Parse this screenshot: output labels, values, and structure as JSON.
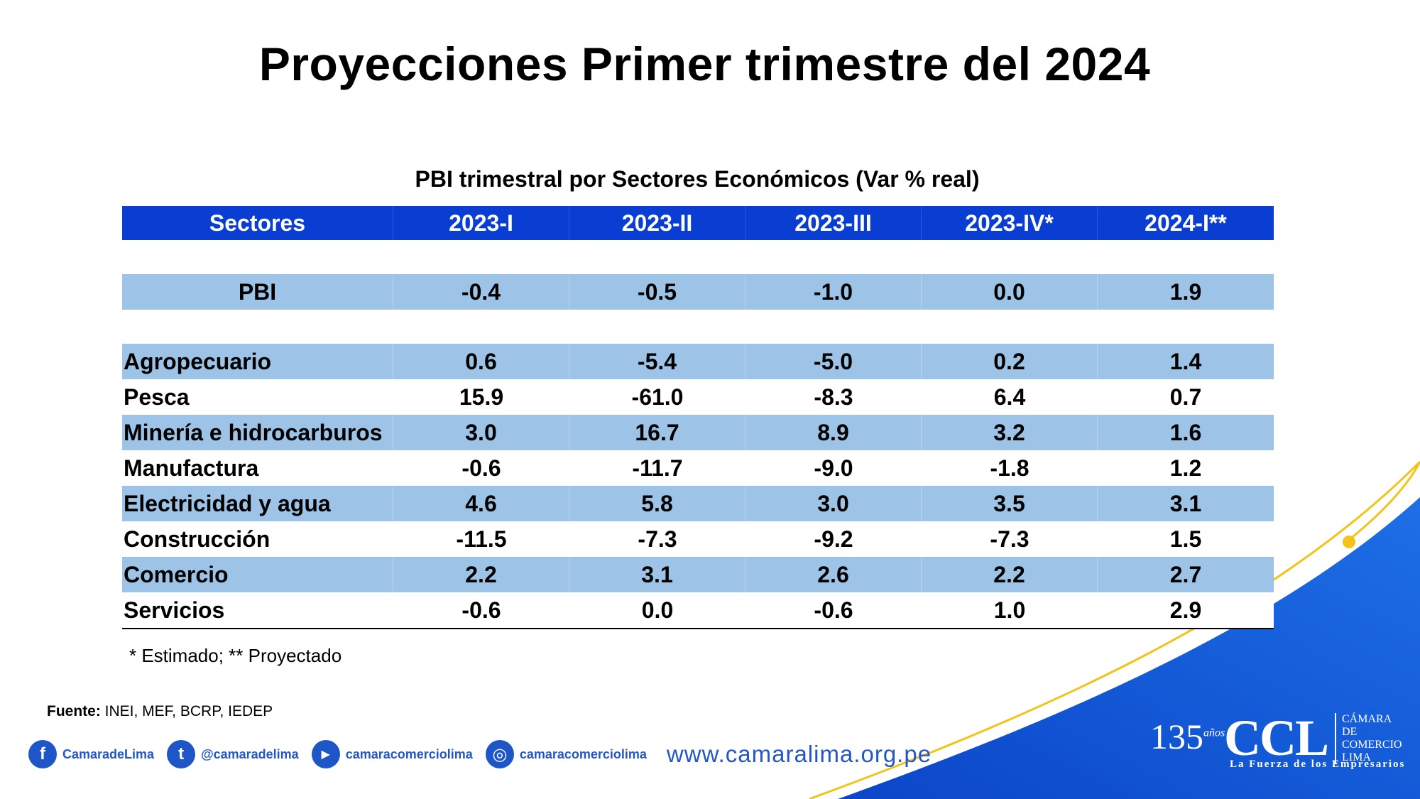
{
  "title": "Proyecciones Primer trimestre del 2024",
  "table": {
    "caption": "PBI trimestral por Sectores Económicos (Var % real)",
    "columns": [
      "Sectores",
      "2023-I",
      "2023-II",
      "2023-III",
      "2023-IV*",
      "2024-I**"
    ],
    "pbi": {
      "label": "PBI",
      "values": [
        "-0.4",
        "-0.5",
        "-1.0",
        "0.0",
        "1.9"
      ]
    },
    "rows": [
      {
        "label": "Agropecuario",
        "values": [
          "0.6",
          "-5.4",
          "-5.0",
          "0.2",
          "1.4"
        ]
      },
      {
        "label": "Pesca",
        "values": [
          "15.9",
          "-61.0",
          "-8.3",
          "6.4",
          "0.7"
        ]
      },
      {
        "label": "Minería e hidrocarburos",
        "values": [
          "3.0",
          "16.7",
          "8.9",
          "3.2",
          "1.6"
        ]
      },
      {
        "label": "Manufactura",
        "values": [
          "-0.6",
          "-11.7",
          "-9.0",
          "-1.8",
          "1.2"
        ]
      },
      {
        "label": "Electricidad y agua",
        "values": [
          "4.6",
          "5.8",
          "3.0",
          "3.5",
          "3.1"
        ]
      },
      {
        "label": "Construcción",
        "values": [
          "-11.5",
          "-7.3",
          "-9.2",
          "-7.3",
          "1.5"
        ]
      },
      {
        "label": "Comercio",
        "values": [
          "2.2",
          "3.1",
          "2.6",
          "2.2",
          "2.7"
        ]
      },
      {
        "label": "Servicios",
        "values": [
          "-0.6",
          "0.0",
          "-0.6",
          "1.0",
          "2.9"
        ]
      }
    ]
  },
  "note": "* Estimado; ** Proyectado",
  "source": {
    "label": "Fuente:",
    "text": "INEI, MEF, BCRP, IEDEP"
  },
  "social": [
    {
      "icon": "facebook-icon",
      "glyph": "f",
      "handle": "CamaradeLima"
    },
    {
      "icon": "twitter-icon",
      "glyph": "t",
      "handle": "@camaradelima"
    },
    {
      "icon": "youtube-icon",
      "glyph": "▶",
      "handle": "camaracomerciolima"
    },
    {
      "icon": "instagram-icon",
      "glyph": "◎",
      "handle": "camaracomerciolima"
    }
  ],
  "website": "www.camaralima.org.pe",
  "logo": {
    "years": "135",
    "years_suffix": "años",
    "acronym": "CCL",
    "org_line1": "CÁMARA",
    "org_line2": "DE COMERCIO",
    "org_line3": "LIMA",
    "tagline": "La Fuerza de los Empresarios"
  },
  "colors": {
    "header": "#0a3dd2",
    "band": "#9dc3e6",
    "brand_blue": "#1f56c7",
    "accent_yellow": "#f2c318"
  }
}
